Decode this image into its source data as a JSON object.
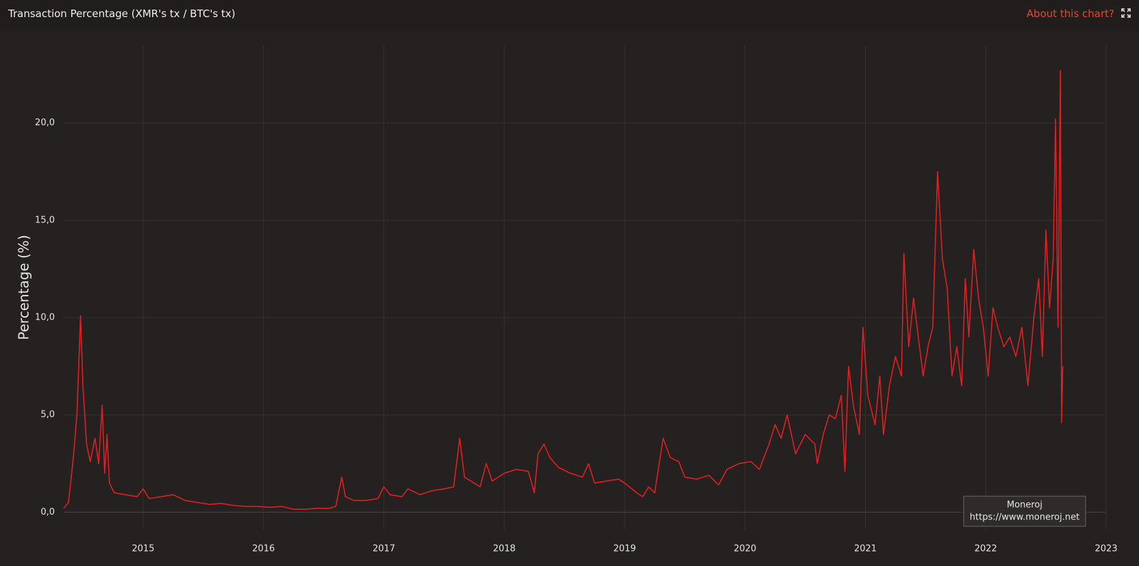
{
  "chart_data": {
    "type": "line",
    "title": "Transaction Percentage (XMR's tx / BTC's tx)",
    "link": "About this chart?",
    "y_label": "Percentage (%)",
    "watermark": [
      "Moneroj",
      "https://www.moneroj.net"
    ],
    "color": "#e02020",
    "grid": true,
    "xlim": [
      2014.34,
      2023
    ],
    "xticks": [
      2015,
      2016,
      2017,
      2018,
      2019,
      2020,
      2021,
      2022,
      2023
    ],
    "ylim": [
      -0.9,
      24
    ],
    "yticks": [
      {
        "value": 0,
        "label": "0,0"
      },
      {
        "value": 5,
        "label": "5,0"
      },
      {
        "value": 10,
        "label": "10,0"
      },
      {
        "value": 15,
        "label": "15,0"
      },
      {
        "value": 20,
        "label": "20,0"
      }
    ],
    "x": [
      2014.34,
      2014.38,
      2014.42,
      2014.45,
      2014.48,
      2014.5,
      2014.53,
      2014.56,
      2014.6,
      2014.63,
      2014.66,
      2014.68,
      2014.7,
      2014.72,
      2014.76,
      2014.85,
      2014.95,
      2015.0,
      2015.05,
      2015.15,
      2015.25,
      2015.35,
      2015.45,
      2015.55,
      2015.65,
      2015.75,
      2015.85,
      2015.95,
      2016.05,
      2016.15,
      2016.25,
      2016.35,
      2016.45,
      2016.55,
      2016.6,
      2016.65,
      2016.68,
      2016.75,
      2016.85,
      2016.95,
      2017.0,
      2017.05,
      2017.15,
      2017.2,
      2017.3,
      2017.4,
      2017.5,
      2017.58,
      2017.63,
      2017.67,
      2017.75,
      2017.8,
      2017.85,
      2017.9,
      2018.0,
      2018.1,
      2018.2,
      2018.25,
      2018.28,
      2018.33,
      2018.38,
      2018.45,
      2018.55,
      2018.65,
      2018.7,
      2018.75,
      2018.85,
      2018.95,
      2019.0,
      2019.1,
      2019.15,
      2019.2,
      2019.25,
      2019.32,
      2019.38,
      2019.45,
      2019.5,
      2019.6,
      2019.7,
      2019.78,
      2019.85,
      2019.95,
      2020.05,
      2020.12,
      2020.2,
      2020.25,
      2020.3,
      2020.35,
      2020.42,
      2020.5,
      2020.58,
      2020.6,
      2020.65,
      2020.7,
      2020.75,
      2020.8,
      2020.83,
      2020.86,
      2020.9,
      2020.95,
      2020.98,
      2021.02,
      2021.08,
      2021.12,
      2021.15,
      2021.2,
      2021.25,
      2021.3,
      2021.32,
      2021.36,
      2021.4,
      2021.44,
      2021.48,
      2021.52,
      2021.56,
      2021.6,
      2021.64,
      2021.68,
      2021.72,
      2021.76,
      2021.8,
      2021.83,
      2021.86,
      2021.9,
      2021.94,
      2021.98,
      2022.02,
      2022.06,
      2022.1,
      2022.15,
      2022.2,
      2022.25,
      2022.3,
      2022.35,
      2022.4,
      2022.44,
      2022.47,
      2022.5,
      2022.53,
      2022.56,
      2022.58,
      2022.6,
      2022.62,
      2022.63,
      2022.64
    ],
    "values": [
      0.2,
      0.5,
      2.8,
      5.0,
      10.1,
      6.5,
      3.5,
      2.6,
      3.8,
      2.5,
      5.5,
      2.0,
      4.0,
      1.5,
      1.0,
      0.9,
      0.8,
      1.2,
      0.7,
      0.8,
      0.9,
      0.6,
      0.5,
      0.4,
      0.45,
      0.35,
      0.3,
      0.3,
      0.25,
      0.3,
      0.15,
      0.15,
      0.2,
      0.2,
      0.3,
      1.8,
      0.8,
      0.6,
      0.6,
      0.7,
      1.3,
      0.9,
      0.8,
      1.2,
      0.9,
      1.1,
      1.2,
      1.3,
      3.8,
      1.8,
      1.5,
      1.3,
      2.5,
      1.6,
      2.0,
      2.2,
      2.1,
      1.0,
      3.0,
      3.5,
      2.8,
      2.3,
      2.0,
      1.8,
      2.5,
      1.5,
      1.6,
      1.7,
      1.5,
      1.0,
      0.8,
      1.3,
      1.0,
      3.8,
      2.8,
      2.6,
      1.8,
      1.7,
      1.9,
      1.4,
      2.2,
      2.5,
      2.6,
      2.2,
      3.5,
      4.5,
      3.8,
      5.0,
      3.0,
      4.0,
      3.5,
      2.5,
      4.0,
      5.0,
      4.8,
      6.0,
      2.1,
      7.5,
      5.5,
      4.0,
      9.5,
      6.0,
      4.5,
      7.0,
      4.0,
      6.5,
      8.0,
      7.0,
      13.3,
      8.5,
      11.0,
      9.0,
      7.0,
      8.5,
      9.5,
      17.5,
      13.0,
      11.5,
      7.0,
      8.5,
      6.5,
      12.0,
      9.0,
      13.5,
      11.0,
      9.5,
      7.0,
      10.5,
      9.5,
      8.5,
      9.0,
      8.0,
      9.5,
      6.5,
      10.0,
      12.0,
      8.0,
      14.5,
      10.5,
      13.0,
      20.2,
      9.5,
      22.7,
      4.6,
      7.5
    ]
  }
}
